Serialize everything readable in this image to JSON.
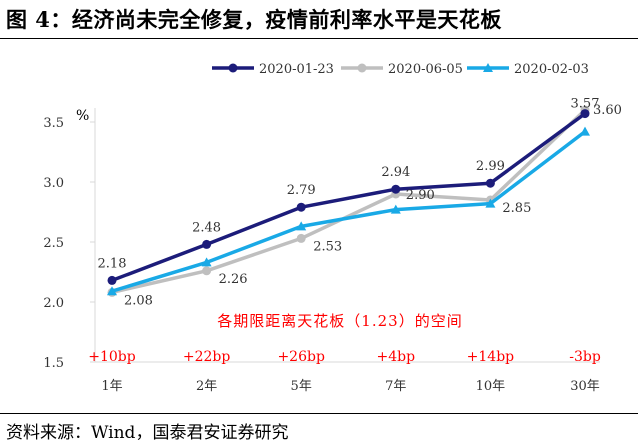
{
  "header": {
    "title": "图 4：经济尚未完全修复，疫情前利率水平是天花板"
  },
  "footer": {
    "source": "资料来源：Wind，国泰君安证券研究"
  },
  "colors": {
    "series_1": "#1c1c7a",
    "series_2": "#bfbfbf",
    "series_3": "#19a9e6",
    "annotation": "#ff0000",
    "axis": "#d9d9d9"
  },
  "chart_data": {
    "type": "line",
    "title": "",
    "xlabel": "",
    "ylabel": "%",
    "ylim": [
      1.5,
      3.7
    ],
    "yticks": [
      "1.5",
      "2.0",
      "2.5",
      "3.0",
      "3.5"
    ],
    "grid": false,
    "legend_position": "top-right",
    "categories": [
      "1年",
      "2年",
      "5年",
      "7年",
      "10年",
      "30年"
    ],
    "series": [
      {
        "name": "2020-01-23",
        "values": [
          2.18,
          2.48,
          2.79,
          2.94,
          2.99,
          3.57
        ],
        "labels": [
          "2.18",
          "2.48",
          "2.79",
          "2.94",
          "2.99",
          "3.57"
        ]
      },
      {
        "name": "2020-06-05",
        "values": [
          2.08,
          2.26,
          2.53,
          2.9,
          2.85,
          3.6
        ],
        "labels": [
          "2.08",
          "2.26",
          "2.53",
          "2.90",
          "2.85",
          "3.60"
        ]
      },
      {
        "name": "2020-02-03",
        "values": [
          2.09,
          2.33,
          2.63,
          2.77,
          2.82,
          3.42
        ],
        "labels": []
      }
    ],
    "annotation_text": "各期限距离天花板（1.23）的空间",
    "spreads": [
      "+10bp",
      "+22bp",
      "+26bp",
      "+4bp",
      "+14bp",
      "-3bp"
    ]
  }
}
